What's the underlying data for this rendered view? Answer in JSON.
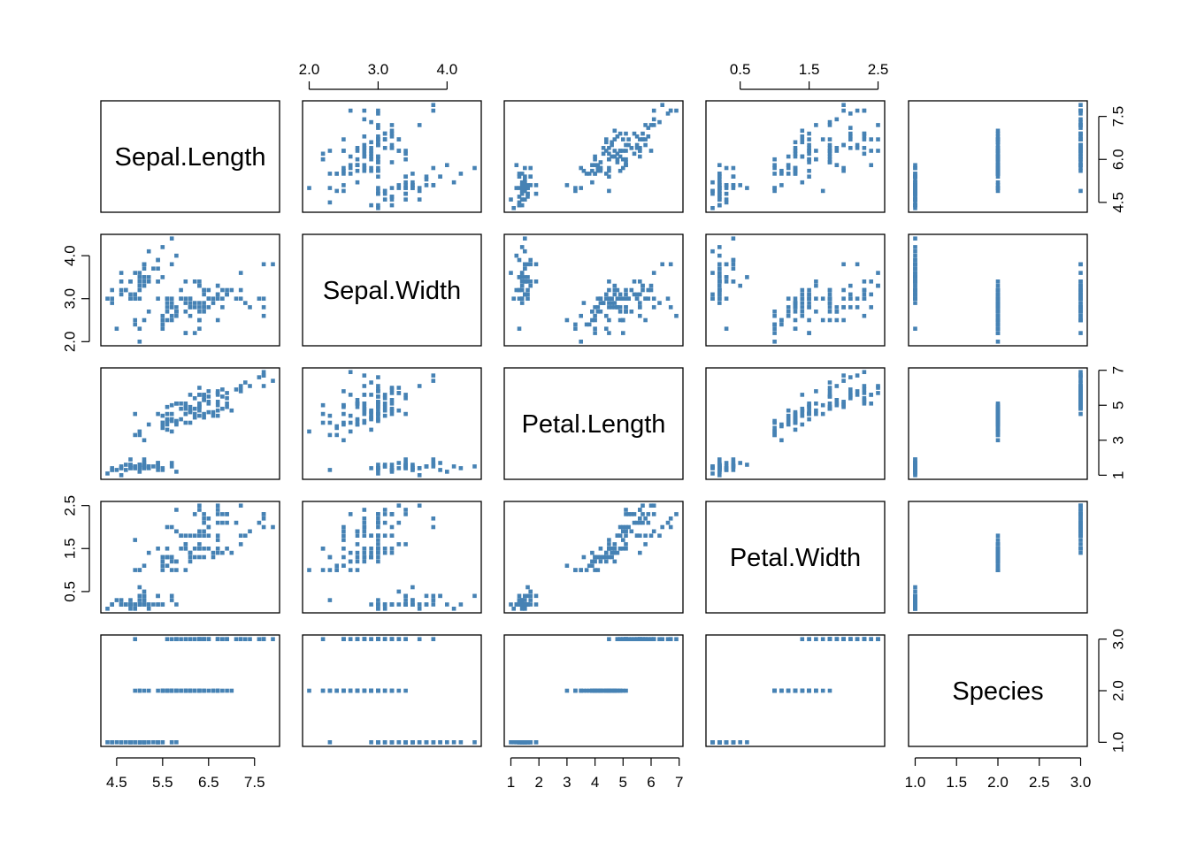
{
  "chart_data": {
    "type": "scatter",
    "kind": "scatterplot-matrix",
    "point_color": "#4682B4",
    "variables": [
      {
        "name": "Sepal.Length",
        "range": [
          4.3,
          7.9
        ],
        "ticks": [
          "4.5",
          "5.5",
          "6.5",
          "7.5"
        ],
        "side_ticks": [
          "4.5",
          "6.0",
          "7.5"
        ]
      },
      {
        "name": "Sepal.Width",
        "range": [
          2.0,
          4.4
        ],
        "ticks": [
          "2.0",
          "3.0",
          "4.0"
        ],
        "side_ticks": [
          "2.0",
          "3.0",
          "4.0"
        ]
      },
      {
        "name": "Petal.Length",
        "range": [
          1.0,
          6.9
        ],
        "ticks": [
          "1",
          "2",
          "3",
          "4",
          "5",
          "6",
          "7"
        ],
        "side_ticks": [
          "1",
          "3",
          "5",
          "7"
        ]
      },
      {
        "name": "Petal.Width",
        "range": [
          0.1,
          2.5
        ],
        "ticks": [
          "0.5",
          "1.5",
          "2.5"
        ],
        "side_ticks": [
          "0.5",
          "1.5",
          "2.5"
        ]
      },
      {
        "name": "Species",
        "range": [
          1,
          3
        ],
        "ticks": [
          "1.0",
          "1.5",
          "2.0",
          "2.5",
          "3.0"
        ],
        "side_ticks": [
          "1.0",
          "2.0",
          "3.0"
        ]
      }
    ],
    "axis_placement": {
      "top": [
        1,
        3
      ],
      "bottom": [
        0,
        2,
        4
      ],
      "right": [
        0,
        2,
        4
      ],
      "left": [
        1,
        3
      ]
    },
    "columns": [
      "Sepal.Length",
      "Sepal.Width",
      "Petal.Length",
      "Petal.Width",
      "Species"
    ],
    "rows": [
      [
        5.1,
        3.5,
        1.4,
        0.2,
        1
      ],
      [
        4.9,
        3.0,
        1.4,
        0.2,
        1
      ],
      [
        4.7,
        3.2,
        1.3,
        0.2,
        1
      ],
      [
        4.6,
        3.1,
        1.5,
        0.2,
        1
      ],
      [
        5.0,
        3.6,
        1.4,
        0.2,
        1
      ],
      [
        5.4,
        3.9,
        1.7,
        0.4,
        1
      ],
      [
        4.6,
        3.4,
        1.4,
        0.3,
        1
      ],
      [
        5.0,
        3.4,
        1.5,
        0.2,
        1
      ],
      [
        4.4,
        2.9,
        1.4,
        0.2,
        1
      ],
      [
        4.9,
        3.1,
        1.5,
        0.1,
        1
      ],
      [
        5.4,
        3.7,
        1.5,
        0.2,
        1
      ],
      [
        4.8,
        3.4,
        1.6,
        0.2,
        1
      ],
      [
        4.8,
        3.0,
        1.4,
        0.1,
        1
      ],
      [
        4.3,
        3.0,
        1.1,
        0.1,
        1
      ],
      [
        5.8,
        4.0,
        1.2,
        0.2,
        1
      ],
      [
        5.7,
        4.4,
        1.5,
        0.4,
        1
      ],
      [
        5.4,
        3.9,
        1.3,
        0.4,
        1
      ],
      [
        5.1,
        3.5,
        1.4,
        0.3,
        1
      ],
      [
        5.7,
        3.8,
        1.7,
        0.3,
        1
      ],
      [
        5.1,
        3.8,
        1.5,
        0.3,
        1
      ],
      [
        5.4,
        3.4,
        1.7,
        0.2,
        1
      ],
      [
        5.1,
        3.7,
        1.5,
        0.4,
        1
      ],
      [
        4.6,
        3.6,
        1.0,
        0.2,
        1
      ],
      [
        5.1,
        3.3,
        1.7,
        0.5,
        1
      ],
      [
        4.8,
        3.4,
        1.9,
        0.2,
        1
      ],
      [
        5.0,
        3.0,
        1.6,
        0.2,
        1
      ],
      [
        5.0,
        3.4,
        1.6,
        0.4,
        1
      ],
      [
        5.2,
        3.5,
        1.5,
        0.2,
        1
      ],
      [
        5.2,
        3.4,
        1.4,
        0.2,
        1
      ],
      [
        4.7,
        3.2,
        1.6,
        0.2,
        1
      ],
      [
        4.8,
        3.1,
        1.6,
        0.2,
        1
      ],
      [
        5.4,
        3.4,
        1.5,
        0.4,
        1
      ],
      [
        5.2,
        4.1,
        1.5,
        0.1,
        1
      ],
      [
        5.5,
        4.2,
        1.4,
        0.2,
        1
      ],
      [
        4.9,
        3.1,
        1.5,
        0.2,
        1
      ],
      [
        5.0,
        3.2,
        1.2,
        0.2,
        1
      ],
      [
        5.5,
        3.5,
        1.3,
        0.2,
        1
      ],
      [
        4.9,
        3.6,
        1.4,
        0.1,
        1
      ],
      [
        4.4,
        3.0,
        1.3,
        0.2,
        1
      ],
      [
        5.1,
        3.4,
        1.5,
        0.2,
        1
      ],
      [
        5.0,
        3.5,
        1.3,
        0.3,
        1
      ],
      [
        4.5,
        2.3,
        1.3,
        0.3,
        1
      ],
      [
        4.4,
        3.2,
        1.3,
        0.2,
        1
      ],
      [
        5.0,
        3.5,
        1.6,
        0.6,
        1
      ],
      [
        5.1,
        3.8,
        1.9,
        0.4,
        1
      ],
      [
        4.8,
        3.0,
        1.4,
        0.3,
        1
      ],
      [
        5.1,
        3.8,
        1.6,
        0.2,
        1
      ],
      [
        4.6,
        3.2,
        1.4,
        0.2,
        1
      ],
      [
        5.3,
        3.7,
        1.5,
        0.2,
        1
      ],
      [
        5.0,
        3.3,
        1.4,
        0.2,
        1
      ],
      [
        7.0,
        3.2,
        4.7,
        1.4,
        2
      ],
      [
        6.4,
        3.2,
        4.5,
        1.5,
        2
      ],
      [
        6.9,
        3.1,
        4.9,
        1.5,
        2
      ],
      [
        5.5,
        2.3,
        4.0,
        1.3,
        2
      ],
      [
        6.5,
        2.8,
        4.6,
        1.5,
        2
      ],
      [
        5.7,
        2.8,
        4.5,
        1.3,
        2
      ],
      [
        6.3,
        3.3,
        4.7,
        1.6,
        2
      ],
      [
        4.9,
        2.4,
        3.3,
        1.0,
        2
      ],
      [
        6.6,
        2.9,
        4.6,
        1.3,
        2
      ],
      [
        5.2,
        2.7,
        3.9,
        1.4,
        2
      ],
      [
        5.0,
        2.0,
        3.5,
        1.0,
        2
      ],
      [
        5.9,
        3.0,
        4.2,
        1.5,
        2
      ],
      [
        6.0,
        2.2,
        4.0,
        1.0,
        2
      ],
      [
        6.1,
        2.9,
        4.7,
        1.4,
        2
      ],
      [
        5.6,
        2.9,
        3.6,
        1.3,
        2
      ],
      [
        6.7,
        3.1,
        4.4,
        1.4,
        2
      ],
      [
        5.6,
        3.0,
        4.5,
        1.5,
        2
      ],
      [
        5.8,
        2.7,
        4.1,
        1.0,
        2
      ],
      [
        6.2,
        2.2,
        4.5,
        1.5,
        2
      ],
      [
        5.6,
        2.5,
        3.9,
        1.1,
        2
      ],
      [
        5.9,
        3.2,
        4.8,
        1.8,
        2
      ],
      [
        6.1,
        2.8,
        4.0,
        1.3,
        2
      ],
      [
        6.3,
        2.5,
        4.9,
        1.5,
        2
      ],
      [
        6.1,
        2.8,
        4.7,
        1.2,
        2
      ],
      [
        6.4,
        2.9,
        4.3,
        1.3,
        2
      ],
      [
        6.6,
        3.0,
        4.4,
        1.4,
        2
      ],
      [
        6.8,
        2.8,
        4.8,
        1.4,
        2
      ],
      [
        6.7,
        3.0,
        5.0,
        1.7,
        2
      ],
      [
        6.0,
        2.9,
        4.5,
        1.5,
        2
      ],
      [
        5.7,
        2.6,
        3.5,
        1.0,
        2
      ],
      [
        5.5,
        2.4,
        3.8,
        1.1,
        2
      ],
      [
        5.5,
        2.4,
        3.7,
        1.0,
        2
      ],
      [
        5.8,
        2.7,
        3.9,
        1.2,
        2
      ],
      [
        6.0,
        2.7,
        5.1,
        1.6,
        2
      ],
      [
        5.4,
        3.0,
        4.5,
        1.5,
        2
      ],
      [
        6.0,
        3.4,
        4.5,
        1.6,
        2
      ],
      [
        6.7,
        3.1,
        4.7,
        1.5,
        2
      ],
      [
        6.3,
        2.3,
        4.4,
        1.3,
        2
      ],
      [
        5.6,
        3.0,
        4.1,
        1.3,
        2
      ],
      [
        5.5,
        2.5,
        4.0,
        1.3,
        2
      ],
      [
        5.5,
        2.6,
        4.4,
        1.2,
        2
      ],
      [
        6.1,
        3.0,
        4.6,
        1.4,
        2
      ],
      [
        5.8,
        2.6,
        4.0,
        1.2,
        2
      ],
      [
        5.0,
        2.3,
        3.3,
        1.0,
        2
      ],
      [
        5.6,
        2.7,
        4.2,
        1.3,
        2
      ],
      [
        5.7,
        3.0,
        4.2,
        1.2,
        2
      ],
      [
        5.7,
        2.9,
        4.2,
        1.3,
        2
      ],
      [
        6.2,
        2.9,
        4.3,
        1.3,
        2
      ],
      [
        5.1,
        2.5,
        3.0,
        1.1,
        2
      ],
      [
        5.7,
        2.8,
        4.1,
        1.3,
        2
      ],
      [
        6.3,
        3.3,
        6.0,
        2.5,
        3
      ],
      [
        5.8,
        2.7,
        5.1,
        1.9,
        3
      ],
      [
        7.1,
        3.0,
        5.9,
        2.1,
        3
      ],
      [
        6.3,
        2.9,
        5.6,
        1.8,
        3
      ],
      [
        6.5,
        3.0,
        5.8,
        2.2,
        3
      ],
      [
        7.6,
        3.0,
        6.6,
        2.1,
        3
      ],
      [
        4.9,
        2.5,
        4.5,
        1.7,
        3
      ],
      [
        7.3,
        2.9,
        6.3,
        1.8,
        3
      ],
      [
        6.7,
        2.5,
        5.8,
        1.8,
        3
      ],
      [
        7.2,
        3.6,
        6.1,
        2.5,
        3
      ],
      [
        6.5,
        3.2,
        5.1,
        2.0,
        3
      ],
      [
        6.4,
        2.7,
        5.3,
        1.9,
        3
      ],
      [
        6.8,
        3.0,
        5.5,
        2.1,
        3
      ],
      [
        5.7,
        2.5,
        5.0,
        2.0,
        3
      ],
      [
        5.8,
        2.8,
        5.1,
        2.4,
        3
      ],
      [
        6.4,
        3.2,
        5.3,
        2.3,
        3
      ],
      [
        6.5,
        3.0,
        5.5,
        1.8,
        3
      ],
      [
        7.7,
        3.8,
        6.7,
        2.2,
        3
      ],
      [
        7.7,
        2.6,
        6.9,
        2.3,
        3
      ],
      [
        6.0,
        2.2,
        5.0,
        1.5,
        3
      ],
      [
        6.9,
        3.2,
        5.7,
        2.3,
        3
      ],
      [
        5.6,
        2.8,
        4.9,
        2.0,
        3
      ],
      [
        7.7,
        2.8,
        6.7,
        2.0,
        3
      ],
      [
        6.3,
        2.7,
        4.9,
        1.8,
        3
      ],
      [
        6.7,
        3.3,
        5.7,
        2.1,
        3
      ],
      [
        7.2,
        3.2,
        6.0,
        1.8,
        3
      ],
      [
        6.2,
        2.8,
        4.8,
        1.8,
        3
      ],
      [
        6.1,
        3.0,
        4.9,
        1.8,
        3
      ],
      [
        6.4,
        2.8,
        5.6,
        2.1,
        3
      ],
      [
        7.2,
        3.0,
        5.8,
        1.6,
        3
      ],
      [
        7.4,
        2.8,
        6.1,
        1.9,
        3
      ],
      [
        7.9,
        3.8,
        6.4,
        2.0,
        3
      ],
      [
        6.4,
        2.8,
        5.6,
        2.2,
        3
      ],
      [
        6.3,
        2.8,
        5.1,
        1.5,
        3
      ],
      [
        6.1,
        2.6,
        5.6,
        1.4,
        3
      ],
      [
        7.7,
        3.0,
        6.1,
        2.3,
        3
      ],
      [
        6.3,
        3.4,
        5.6,
        2.4,
        3
      ],
      [
        6.4,
        3.1,
        5.5,
        1.8,
        3
      ],
      [
        6.0,
        3.0,
        4.8,
        1.8,
        3
      ],
      [
        6.9,
        3.1,
        5.4,
        2.1,
        3
      ],
      [
        6.7,
        3.1,
        5.6,
        2.4,
        3
      ],
      [
        6.9,
        3.1,
        5.1,
        2.3,
        3
      ],
      [
        5.8,
        2.7,
        5.1,
        1.9,
        3
      ],
      [
        6.8,
        3.2,
        5.9,
        2.3,
        3
      ],
      [
        6.7,
        3.3,
        5.7,
        2.5,
        3
      ],
      [
        6.7,
        3.0,
        5.2,
        2.3,
        3
      ],
      [
        6.3,
        2.5,
        5.0,
        1.9,
        3
      ],
      [
        6.5,
        3.0,
        5.2,
        2.0,
        3
      ],
      [
        6.2,
        3.4,
        5.4,
        2.3,
        3
      ],
      [
        5.9,
        3.0,
        5.1,
        1.8,
        3
      ]
    ]
  }
}
